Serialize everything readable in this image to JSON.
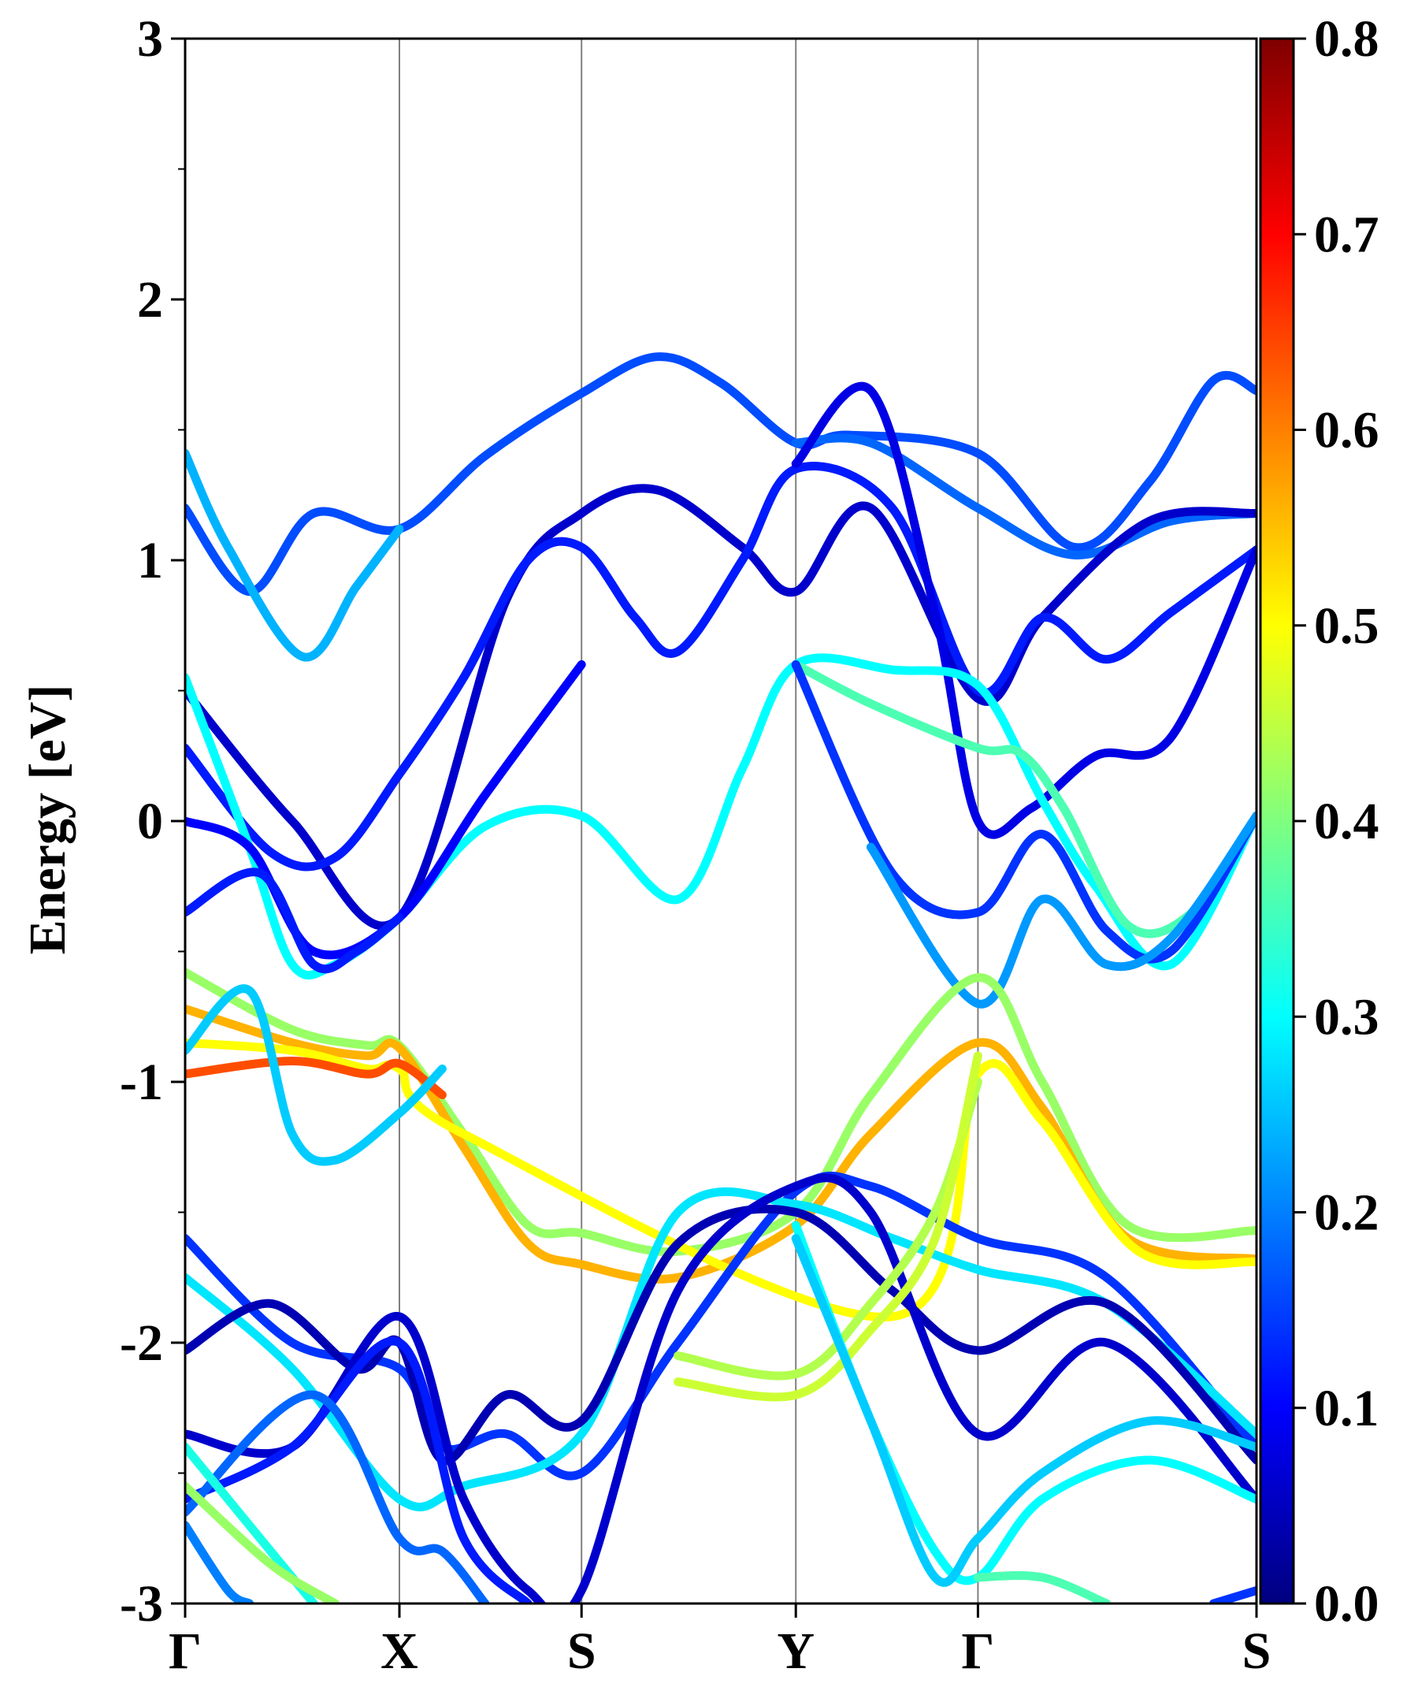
{
  "chart_data": {
    "type": "line",
    "title": "",
    "xlabel": "",
    "ylabel": "Energy [eV]",
    "ylim": [
      -3,
      3
    ],
    "yticks": [
      "3",
      "2",
      "1",
      "0",
      "-1",
      "-2",
      "-3"
    ],
    "ytick_values": [
      3,
      2,
      1,
      0,
      -1,
      -2,
      -3
    ],
    "kpath_labels": [
      "Γ",
      "X",
      "S",
      "Y",
      "Γ",
      "S"
    ],
    "kpath_positions": [
      0,
      1,
      1.85,
      2.85,
      3.7,
      5.0
    ],
    "colorbar": {
      "colormap": "jet",
      "range": [
        0.0,
        0.8
      ],
      "ticks": [
        "0.8",
        "0.7",
        "0.6",
        "0.5",
        "0.4",
        "0.3",
        "0.2",
        "0.1",
        "0.0"
      ],
      "tick_values": [
        0.8,
        0.7,
        0.6,
        0.5,
        0.4,
        0.3,
        0.2,
        0.1,
        0.0
      ]
    },
    "series": [
      {
        "name": "band-c1",
        "weight": 0.16,
        "points": [
          [
            0,
            1.2
          ],
          [
            0.3,
            0.88
          ],
          [
            0.6,
            1.18
          ],
          [
            1,
            1.12
          ],
          [
            1.4,
            1.4
          ],
          [
            1.85,
            1.64
          ],
          [
            2.2,
            1.78
          ],
          [
            2.5,
            1.68
          ],
          [
            2.85,
            1.45
          ],
          [
            3.1,
            1.48
          ],
          [
            3.7,
            1.41
          ],
          [
            4.15,
            1.05
          ],
          [
            4.5,
            1.3
          ],
          [
            4.8,
            1.69
          ],
          [
            5,
            1.65
          ]
        ]
      },
      {
        "name": "band-c2",
        "weight": 0.24,
        "points": [
          [
            0,
            1.41
          ],
          [
            0.2,
            1.05
          ],
          [
            0.55,
            0.63
          ],
          [
            0.8,
            0.9
          ],
          [
            1,
            1.12
          ]
        ]
      },
      {
        "name": "band-c3",
        "weight": 0.18,
        "points": [
          [
            2.85,
            1.45
          ],
          [
            3.2,
            1.45
          ],
          [
            3.7,
            1.2
          ],
          [
            4.15,
            1.02
          ],
          [
            4.6,
            1.15
          ],
          [
            5,
            1.18
          ]
        ]
      },
      {
        "name": "band-c4",
        "weight": 0.06,
        "points": [
          [
            0,
            0.5
          ],
          [
            0.5,
            0.0
          ],
          [
            1,
            -0.37
          ],
          [
            1.5,
            0.85
          ],
          [
            1.85,
            1.18
          ],
          [
            2.2,
            1.27
          ],
          [
            2.6,
            1.05
          ],
          [
            2.85,
            0.88
          ],
          [
            3.2,
            1.2
          ],
          [
            3.7,
            0.47
          ],
          [
            4.0,
            0.78
          ],
          [
            4.5,
            1.15
          ],
          [
            5,
            1.18
          ]
        ]
      },
      {
        "name": "band-c5",
        "weight": 0.12,
        "points": [
          [
            0,
            0.28
          ],
          [
            0.4,
            -0.12
          ],
          [
            0.7,
            -0.14
          ],
          [
            1,
            0.18
          ],
          [
            1.3,
            0.55
          ],
          [
            1.6,
            1.0
          ],
          [
            1.85,
            1.05
          ],
          [
            2.1,
            0.78
          ],
          [
            2.3,
            0.65
          ],
          [
            2.6,
            1.0
          ],
          [
            2.85,
            1.35
          ],
          [
            3.3,
            1.2
          ],
          [
            3.7,
            0.5
          ],
          [
            4.0,
            0.78
          ],
          [
            4.3,
            0.62
          ],
          [
            4.6,
            0.8
          ],
          [
            5,
            1.04
          ]
        ]
      },
      {
        "name": "band-c6",
        "weight": 0.08,
        "points": [
          [
            2.85,
            1.37
          ],
          [
            3.2,
            1.65
          ],
          [
            3.5,
            0.8
          ],
          [
            3.7,
            0.0
          ],
          [
            3.95,
            0.05
          ],
          [
            4.25,
            0.25
          ],
          [
            4.6,
            0.32
          ],
          [
            5,
            1.04
          ]
        ]
      },
      {
        "name": "band-v1",
        "weight": 0.3,
        "points": [
          [
            0,
            0.55
          ],
          [
            0.3,
            -0.1
          ],
          [
            0.5,
            -0.55
          ],
          [
            0.7,
            -0.55
          ],
          [
            1,
            -0.37
          ],
          [
            1.4,
            -0.02
          ],
          [
            1.85,
            0.02
          ],
          [
            2.3,
            -0.3
          ],
          [
            2.6,
            0.2
          ],
          [
            2.85,
            0.6
          ],
          [
            3.3,
            0.58
          ],
          [
            3.7,
            0.52
          ],
          [
            4.0,
            0.08
          ],
          [
            4.25,
            -0.25
          ],
          [
            4.6,
            -0.55
          ],
          [
            5,
            0.02
          ]
        ]
      },
      {
        "name": "band-v2",
        "weight": 0.36,
        "points": [
          [
            2.85,
            0.6
          ],
          [
            3.2,
            0.45
          ],
          [
            3.7,
            0.28
          ],
          [
            3.9,
            0.26
          ],
          [
            4.1,
            0.05
          ],
          [
            4.4,
            -0.4
          ],
          [
            4.7,
            -0.35
          ],
          [
            5,
            0.02
          ]
        ]
      },
      {
        "name": "band-v3",
        "weight": 0.1,
        "points": [
          [
            0,
            0.0
          ],
          [
            0.3,
            -0.1
          ],
          [
            0.6,
            -0.5
          ],
          [
            1,
            -0.37
          ],
          [
            1.4,
            0.1
          ],
          [
            1.85,
            0.6
          ]
        ]
      },
      {
        "name": "band-v4",
        "weight": 0.12,
        "points": [
          [
            0,
            -0.35
          ],
          [
            0.35,
            -0.2
          ],
          [
            0.6,
            -0.55
          ],
          [
            0.8,
            -0.5
          ],
          [
            1,
            -0.37
          ]
        ]
      },
      {
        "name": "band-v5",
        "weight": 0.14,
        "points": [
          [
            2.85,
            0.6
          ],
          [
            3.3,
            -0.2
          ],
          [
            3.7,
            -0.35
          ],
          [
            4.0,
            -0.05
          ],
          [
            4.3,
            -0.42
          ],
          [
            4.6,
            -0.5
          ],
          [
            5,
            0.02
          ]
        ]
      },
      {
        "name": "band-v6",
        "weight": 0.22,
        "points": [
          [
            3.2,
            -0.1
          ],
          [
            3.7,
            -0.7
          ],
          [
            4.0,
            -0.3
          ],
          [
            4.3,
            -0.55
          ],
          [
            4.6,
            -0.45
          ],
          [
            5,
            0.02
          ]
        ]
      },
      {
        "name": "band-f1",
        "weight": 0.42,
        "points": [
          [
            0,
            -0.58
          ],
          [
            0.5,
            -0.8
          ],
          [
            0.85,
            -0.86
          ],
          [
            1.0,
            -0.86
          ],
          [
            1.3,
            -1.2
          ],
          [
            1.6,
            -1.55
          ],
          [
            1.85,
            -1.58
          ],
          [
            2.3,
            -1.65
          ],
          [
            2.85,
            -1.5
          ],
          [
            3.2,
            -1.05
          ],
          [
            3.7,
            -0.6
          ],
          [
            4.0,
            -1.0
          ],
          [
            4.4,
            -1.55
          ],
          [
            5,
            -1.57
          ]
        ]
      },
      {
        "name": "band-f2",
        "weight": 0.56,
        "points": [
          [
            0,
            -0.72
          ],
          [
            0.5,
            -0.85
          ],
          [
            0.85,
            -0.9
          ],
          [
            1.0,
            -0.87
          ],
          [
            1.3,
            -1.25
          ],
          [
            1.6,
            -1.62
          ],
          [
            1.85,
            -1.7
          ],
          [
            2.3,
            -1.75
          ],
          [
            2.85,
            -1.55
          ],
          [
            3.2,
            -1.2
          ],
          [
            3.7,
            -0.85
          ],
          [
            4.0,
            -1.1
          ],
          [
            4.4,
            -1.6
          ],
          [
            5,
            -1.68
          ]
        ]
      },
      {
        "name": "band-f3",
        "weight": 0.5,
        "points": [
          [
            0,
            -0.85
          ],
          [
            0.5,
            -0.88
          ],
          [
            0.85,
            -0.95
          ],
          [
            1.0,
            -0.95
          ],
          [
            1.3,
            -1.2
          ],
          [
            3.3,
            -1.9
          ],
          [
            3.7,
            -0.97
          ],
          [
            4.0,
            -1.15
          ],
          [
            4.45,
            -1.65
          ],
          [
            5,
            -1.69
          ]
        ]
      },
      {
        "name": "band-f4",
        "weight": 0.64,
        "points": [
          [
            0,
            -0.97
          ],
          [
            0.5,
            -0.92
          ],
          [
            0.85,
            -0.97
          ],
          [
            1.0,
            -0.93
          ],
          [
            1.2,
            -1.05
          ]
        ]
      },
      {
        "name": "band-f5",
        "weight": 0.26,
        "points": [
          [
            0,
            -0.88
          ],
          [
            0.3,
            -0.65
          ],
          [
            0.5,
            -1.2
          ],
          [
            0.7,
            -1.3
          ],
          [
            1,
            -1.12
          ],
          [
            1.2,
            -0.95
          ]
        ]
      },
      {
        "name": "band-d1",
        "weight": 0.14,
        "points": [
          [
            0,
            -1.6
          ],
          [
            0.5,
            -2.0
          ],
          [
            1,
            -2.1
          ],
          [
            1.2,
            -2.4
          ],
          [
            1.5,
            -2.35
          ],
          [
            1.85,
            -2.5
          ],
          [
            2.3,
            -2.0
          ],
          [
            2.85,
            -1.42
          ],
          [
            3.2,
            -1.4
          ],
          [
            3.7,
            -1.6
          ],
          [
            4.3,
            -1.75
          ],
          [
            5,
            -2.4
          ]
        ]
      },
      {
        "name": "band-d2",
        "weight": 0.28,
        "points": [
          [
            0,
            -1.75
          ],
          [
            0.5,
            -2.1
          ],
          [
            1,
            -2.6
          ],
          [
            1.3,
            -2.55
          ],
          [
            1.85,
            -2.35
          ],
          [
            2.3,
            -1.5
          ],
          [
            2.85,
            -1.47
          ],
          [
            3.3,
            -1.6
          ],
          [
            3.7,
            -1.72
          ],
          [
            4.3,
            -1.85
          ],
          [
            5,
            -2.35
          ]
        ]
      },
      {
        "name": "band-d3",
        "weight": 0.04,
        "points": [
          [
            0,
            -2.03
          ],
          [
            0.4,
            -1.85
          ],
          [
            0.8,
            -2.1
          ],
          [
            1,
            -2.0
          ],
          [
            1.2,
            -2.45
          ],
          [
            1.5,
            -2.2
          ],
          [
            1.85,
            -2.3
          ],
          [
            2.3,
            -1.62
          ],
          [
            2.85,
            -1.5
          ],
          [
            3.3,
            -1.8
          ],
          [
            3.7,
            -2.03
          ],
          [
            4.3,
            -1.85
          ],
          [
            5,
            -2.45
          ]
        ]
      },
      {
        "name": "band-d4",
        "weight": 0.06,
        "points": [
          [
            0,
            -2.35
          ],
          [
            0.5,
            -2.4
          ],
          [
            1,
            -1.9
          ],
          [
            1.3,
            -2.6
          ],
          [
            1.6,
            -2.95
          ],
          [
            1.85,
            -2.95
          ],
          [
            2.3,
            -1.8
          ],
          [
            2.85,
            -1.4
          ],
          [
            3.2,
            -1.5
          ],
          [
            3.7,
            -2.35
          ],
          [
            4.3,
            -2.0
          ],
          [
            5,
            -2.6
          ]
        ]
      },
      {
        "name": "band-d5",
        "weight": 0.12,
        "points": [
          [
            0,
            -2.6
          ],
          [
            0.5,
            -2.4
          ],
          [
            1,
            -2.0
          ],
          [
            1.3,
            -2.75
          ],
          [
            1.6,
            -3.0
          ]
        ]
      },
      {
        "name": "band-d6",
        "weight": 0.18,
        "points": [
          [
            0,
            -2.65
          ],
          [
            0.6,
            -2.2
          ],
          [
            1,
            -2.75
          ],
          [
            1.2,
            -2.8
          ],
          [
            1.4,
            -3.0
          ]
        ]
      },
      {
        "name": "band-d7",
        "weight": 0.44,
        "points": [
          [
            2.3,
            -2.05
          ],
          [
            2.85,
            -2.12
          ],
          [
            3.2,
            -1.85
          ],
          [
            3.5,
            -1.5
          ],
          [
            3.7,
            -1.0
          ]
        ]
      },
      {
        "name": "band-d8",
        "weight": 0.46,
        "points": [
          [
            2.3,
            -2.15
          ],
          [
            2.85,
            -2.2
          ],
          [
            3.2,
            -1.95
          ],
          [
            3.5,
            -1.6
          ],
          [
            3.7,
            -0.9
          ]
        ]
      },
      {
        "name": "band-d9",
        "weight": 0.3,
        "points": [
          [
            2.85,
            -1.55
          ],
          [
            3.2,
            -2.3
          ],
          [
            3.5,
            -2.8
          ],
          [
            3.7,
            -2.9
          ],
          [
            4.0,
            -2.6
          ],
          [
            4.5,
            -2.45
          ],
          [
            5,
            -2.6
          ]
        ]
      },
      {
        "name": "band-d10",
        "weight": 0.26,
        "points": [
          [
            2.85,
            -1.6
          ],
          [
            3.2,
            -2.3
          ],
          [
            3.5,
            -2.9
          ],
          [
            3.7,
            -2.75
          ],
          [
            4.0,
            -2.5
          ],
          [
            4.5,
            -2.3
          ],
          [
            5,
            -2.4
          ]
        ]
      },
      {
        "name": "band-d11",
        "weight": 0.32,
        "points": [
          [
            0,
            -2.4
          ],
          [
            0.3,
            -2.7
          ],
          [
            0.6,
            -3.0
          ]
        ]
      },
      {
        "name": "band-d12",
        "weight": 0.42,
        "points": [
          [
            0,
            -2.55
          ],
          [
            0.4,
            -2.85
          ],
          [
            0.7,
            -3.0
          ]
        ]
      },
      {
        "name": "band-d13",
        "weight": 0.2,
        "points": [
          [
            0,
            -2.7
          ],
          [
            0.2,
            -2.95
          ],
          [
            0.3,
            -3.0
          ]
        ]
      },
      {
        "name": "band-d14",
        "weight": 0.36,
        "points": [
          [
            3.7,
            -2.9
          ],
          [
            4.0,
            -2.9
          ],
          [
            4.3,
            -3.0
          ]
        ]
      },
      {
        "name": "band-d15",
        "weight": 0.14,
        "points": [
          [
            4.8,
            -3.0
          ],
          [
            5,
            -2.95
          ]
        ]
      }
    ]
  }
}
